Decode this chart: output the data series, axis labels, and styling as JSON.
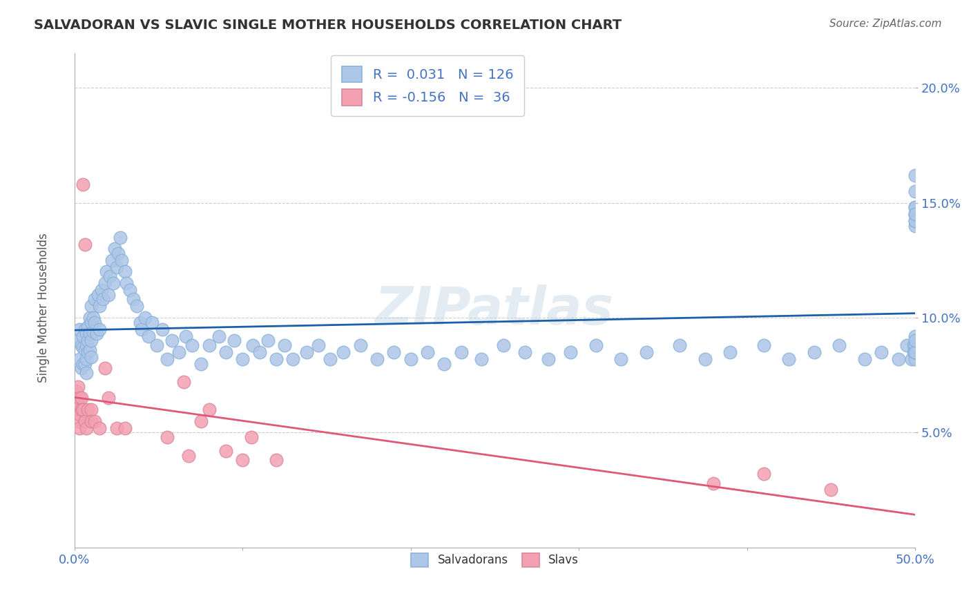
{
  "title": "SALVADORAN VS SLAVIC SINGLE MOTHER HOUSEHOLDS CORRELATION CHART",
  "source": "Source: ZipAtlas.com",
  "ylabel": "Single Mother Households",
  "xlim": [
    0.0,
    0.5
  ],
  "ylim": [
    0.0,
    0.215
  ],
  "yticks": [
    0.05,
    0.1,
    0.15,
    0.2
  ],
  "ytick_labels": [
    "5.0%",
    "10.0%",
    "15.0%",
    "20.0%"
  ],
  "grid_color": "#cccccc",
  "background_color": "#ffffff",
  "salvadoran_color": "#aec6e8",
  "slavic_color": "#f4a0b0",
  "salvadoran_line_color": "#1a5fa8",
  "slavic_line_color": "#e05878",
  "r_salvadoran": 0.031,
  "n_salvadoran": 126,
  "r_slavic": -0.156,
  "n_slavic": 36,
  "legend_label_salvadoran": "Salvadorans",
  "legend_label_slavic": "Slavs",
  "watermark_text": "ZIPatlas",
  "salvadoran_x": [
    0.002,
    0.003,
    0.003,
    0.004,
    0.004,
    0.005,
    0.005,
    0.005,
    0.006,
    0.006,
    0.006,
    0.007,
    0.007,
    0.007,
    0.007,
    0.008,
    0.008,
    0.008,
    0.009,
    0.009,
    0.009,
    0.01,
    0.01,
    0.01,
    0.01,
    0.011,
    0.011,
    0.012,
    0.012,
    0.013,
    0.014,
    0.015,
    0.015,
    0.016,
    0.017,
    0.018,
    0.019,
    0.02,
    0.021,
    0.022,
    0.023,
    0.024,
    0.025,
    0.026,
    0.027,
    0.028,
    0.03,
    0.031,
    0.033,
    0.035,
    0.037,
    0.039,
    0.04,
    0.042,
    0.044,
    0.046,
    0.049,
    0.052,
    0.055,
    0.058,
    0.062,
    0.066,
    0.07,
    0.075,
    0.08,
    0.086,
    0.09,
    0.095,
    0.1,
    0.106,
    0.11,
    0.115,
    0.12,
    0.125,
    0.13,
    0.138,
    0.145,
    0.152,
    0.16,
    0.17,
    0.18,
    0.19,
    0.2,
    0.21,
    0.22,
    0.23,
    0.242,
    0.255,
    0.268,
    0.282,
    0.295,
    0.31,
    0.325,
    0.34,
    0.36,
    0.375,
    0.39,
    0.41,
    0.425,
    0.44,
    0.455,
    0.47,
    0.48,
    0.49,
    0.495,
    0.498,
    0.499,
    0.499,
    0.5,
    0.5,
    0.5,
    0.5,
    0.5,
    0.5,
    0.5,
    0.5,
    0.5,
    0.5,
    0.5,
    0.5,
    0.5,
    0.5,
    0.5,
    0.5,
    0.5,
    0.5
  ],
  "salvadoran_y": [
    0.09,
    0.095,
    0.082,
    0.088,
    0.078,
    0.092,
    0.087,
    0.08,
    0.095,
    0.086,
    0.08,
    0.093,
    0.088,
    0.082,
    0.076,
    0.096,
    0.09,
    0.085,
    0.1,
    0.093,
    0.086,
    0.105,
    0.098,
    0.09,
    0.083,
    0.1,
    0.094,
    0.108,
    0.098,
    0.093,
    0.11,
    0.105,
    0.095,
    0.112,
    0.108,
    0.115,
    0.12,
    0.11,
    0.118,
    0.125,
    0.115,
    0.13,
    0.122,
    0.128,
    0.135,
    0.125,
    0.12,
    0.115,
    0.112,
    0.108,
    0.105,
    0.098,
    0.095,
    0.1,
    0.092,
    0.098,
    0.088,
    0.095,
    0.082,
    0.09,
    0.085,
    0.092,
    0.088,
    0.08,
    0.088,
    0.092,
    0.085,
    0.09,
    0.082,
    0.088,
    0.085,
    0.09,
    0.082,
    0.088,
    0.082,
    0.085,
    0.088,
    0.082,
    0.085,
    0.088,
    0.082,
    0.085,
    0.082,
    0.085,
    0.08,
    0.085,
    0.082,
    0.088,
    0.085,
    0.082,
    0.085,
    0.088,
    0.082,
    0.085,
    0.088,
    0.082,
    0.085,
    0.088,
    0.082,
    0.085,
    0.088,
    0.082,
    0.085,
    0.082,
    0.088,
    0.082,
    0.085,
    0.088,
    0.082,
    0.085,
    0.088,
    0.085,
    0.155,
    0.092,
    0.162,
    0.145,
    0.148,
    0.14,
    0.142,
    0.088,
    0.145,
    0.142,
    0.085,
    0.148,
    0.09,
    0.145
  ],
  "slavic_x": [
    0.001,
    0.001,
    0.002,
    0.002,
    0.002,
    0.003,
    0.003,
    0.003,
    0.004,
    0.004,
    0.005,
    0.005,
    0.006,
    0.006,
    0.007,
    0.008,
    0.01,
    0.01,
    0.012,
    0.015,
    0.018,
    0.02,
    0.025,
    0.03,
    0.055,
    0.065,
    0.068,
    0.075,
    0.08,
    0.09,
    0.1,
    0.105,
    0.12,
    0.38,
    0.41,
    0.45
  ],
  "slavic_y": [
    0.068,
    0.06,
    0.07,
    0.062,
    0.055,
    0.065,
    0.058,
    0.052,
    0.065,
    0.06,
    0.158,
    0.06,
    0.132,
    0.055,
    0.052,
    0.06,
    0.06,
    0.055,
    0.055,
    0.052,
    0.078,
    0.065,
    0.052,
    0.052,
    0.048,
    0.072,
    0.04,
    0.055,
    0.06,
    0.042,
    0.038,
    0.048,
    0.038,
    0.028,
    0.032,
    0.025
  ]
}
